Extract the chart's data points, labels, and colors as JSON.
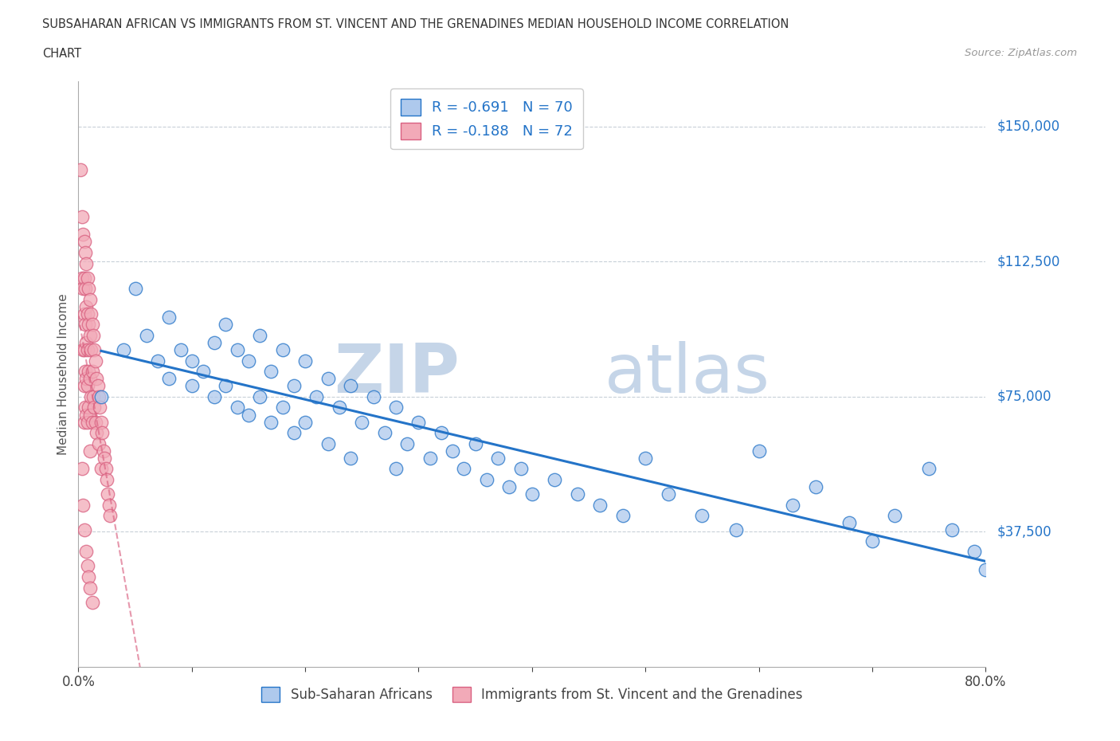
{
  "title_line1": "SUBSAHARAN AFRICAN VS IMMIGRANTS FROM ST. VINCENT AND THE GRENADINES MEDIAN HOUSEHOLD INCOME CORRELATION",
  "title_line2": "CHART",
  "source": "Source: ZipAtlas.com",
  "ylabel": "Median Household Income",
  "xlim": [
    0.0,
    0.8
  ],
  "ylim": [
    0,
    162500
  ],
  "yticks": [
    0,
    37500,
    75000,
    112500,
    150000
  ],
  "xticks": [
    0.0,
    0.1,
    0.2,
    0.3,
    0.4,
    0.5,
    0.6,
    0.7,
    0.8
  ],
  "watermark_zip": "ZIP",
  "watermark_atlas": "atlas",
  "blue_R": -0.691,
  "blue_N": 70,
  "pink_R": -0.188,
  "pink_N": 72,
  "blue_color": "#aec9ed",
  "pink_color": "#f2aab8",
  "line_blue": "#2474c8",
  "line_pink": "#d96080",
  "legend_blue_label": "Sub-Saharan Africans",
  "legend_pink_label": "Immigrants from St. Vincent and the Grenadines",
  "blue_scatter_x": [
    0.02,
    0.04,
    0.05,
    0.06,
    0.07,
    0.08,
    0.08,
    0.09,
    0.1,
    0.1,
    0.11,
    0.12,
    0.12,
    0.13,
    0.13,
    0.14,
    0.14,
    0.15,
    0.15,
    0.16,
    0.16,
    0.17,
    0.17,
    0.18,
    0.18,
    0.19,
    0.19,
    0.2,
    0.2,
    0.21,
    0.22,
    0.22,
    0.23,
    0.24,
    0.24,
    0.25,
    0.26,
    0.27,
    0.28,
    0.28,
    0.29,
    0.3,
    0.31,
    0.32,
    0.33,
    0.34,
    0.35,
    0.36,
    0.37,
    0.38,
    0.39,
    0.4,
    0.42,
    0.44,
    0.46,
    0.48,
    0.5,
    0.52,
    0.55,
    0.58,
    0.6,
    0.63,
    0.65,
    0.68,
    0.7,
    0.72,
    0.75,
    0.77,
    0.79,
    0.8
  ],
  "blue_scatter_y": [
    75000,
    88000,
    105000,
    92000,
    85000,
    97000,
    80000,
    88000,
    85000,
    78000,
    82000,
    90000,
    75000,
    95000,
    78000,
    88000,
    72000,
    85000,
    70000,
    92000,
    75000,
    82000,
    68000,
    88000,
    72000,
    78000,
    65000,
    85000,
    68000,
    75000,
    80000,
    62000,
    72000,
    78000,
    58000,
    68000,
    75000,
    65000,
    72000,
    55000,
    62000,
    68000,
    58000,
    65000,
    60000,
    55000,
    62000,
    52000,
    58000,
    50000,
    55000,
    48000,
    52000,
    48000,
    45000,
    42000,
    58000,
    48000,
    42000,
    38000,
    60000,
    45000,
    50000,
    40000,
    35000,
    42000,
    55000,
    38000,
    32000,
    27000
  ],
  "pink_scatter_x": [
    0.002,
    0.003,
    0.003,
    0.004,
    0.004,
    0.004,
    0.005,
    0.005,
    0.005,
    0.005,
    0.005,
    0.005,
    0.006,
    0.006,
    0.006,
    0.006,
    0.006,
    0.007,
    0.007,
    0.007,
    0.007,
    0.007,
    0.008,
    0.008,
    0.008,
    0.008,
    0.008,
    0.009,
    0.009,
    0.009,
    0.009,
    0.01,
    0.01,
    0.01,
    0.01,
    0.01,
    0.011,
    0.011,
    0.011,
    0.012,
    0.012,
    0.012,
    0.013,
    0.013,
    0.014,
    0.014,
    0.015,
    0.015,
    0.016,
    0.016,
    0.017,
    0.018,
    0.018,
    0.019,
    0.02,
    0.02,
    0.021,
    0.022,
    0.023,
    0.024,
    0.025,
    0.026,
    0.027,
    0.028,
    0.003,
    0.004,
    0.005,
    0.007,
    0.008,
    0.009,
    0.01,
    0.012
  ],
  "pink_scatter_y": [
    138000,
    125000,
    108000,
    120000,
    105000,
    88000,
    118000,
    108000,
    98000,
    88000,
    78000,
    68000,
    115000,
    105000,
    95000,
    82000,
    72000,
    112000,
    100000,
    90000,
    80000,
    70000,
    108000,
    98000,
    88000,
    78000,
    68000,
    105000,
    95000,
    82000,
    72000,
    102000,
    92000,
    80000,
    70000,
    60000,
    98000,
    88000,
    75000,
    95000,
    82000,
    68000,
    92000,
    75000,
    88000,
    72000,
    85000,
    68000,
    80000,
    65000,
    78000,
    75000,
    62000,
    72000,
    68000,
    55000,
    65000,
    60000,
    58000,
    55000,
    52000,
    48000,
    45000,
    42000,
    55000,
    45000,
    38000,
    32000,
    28000,
    25000,
    22000,
    18000
  ]
}
